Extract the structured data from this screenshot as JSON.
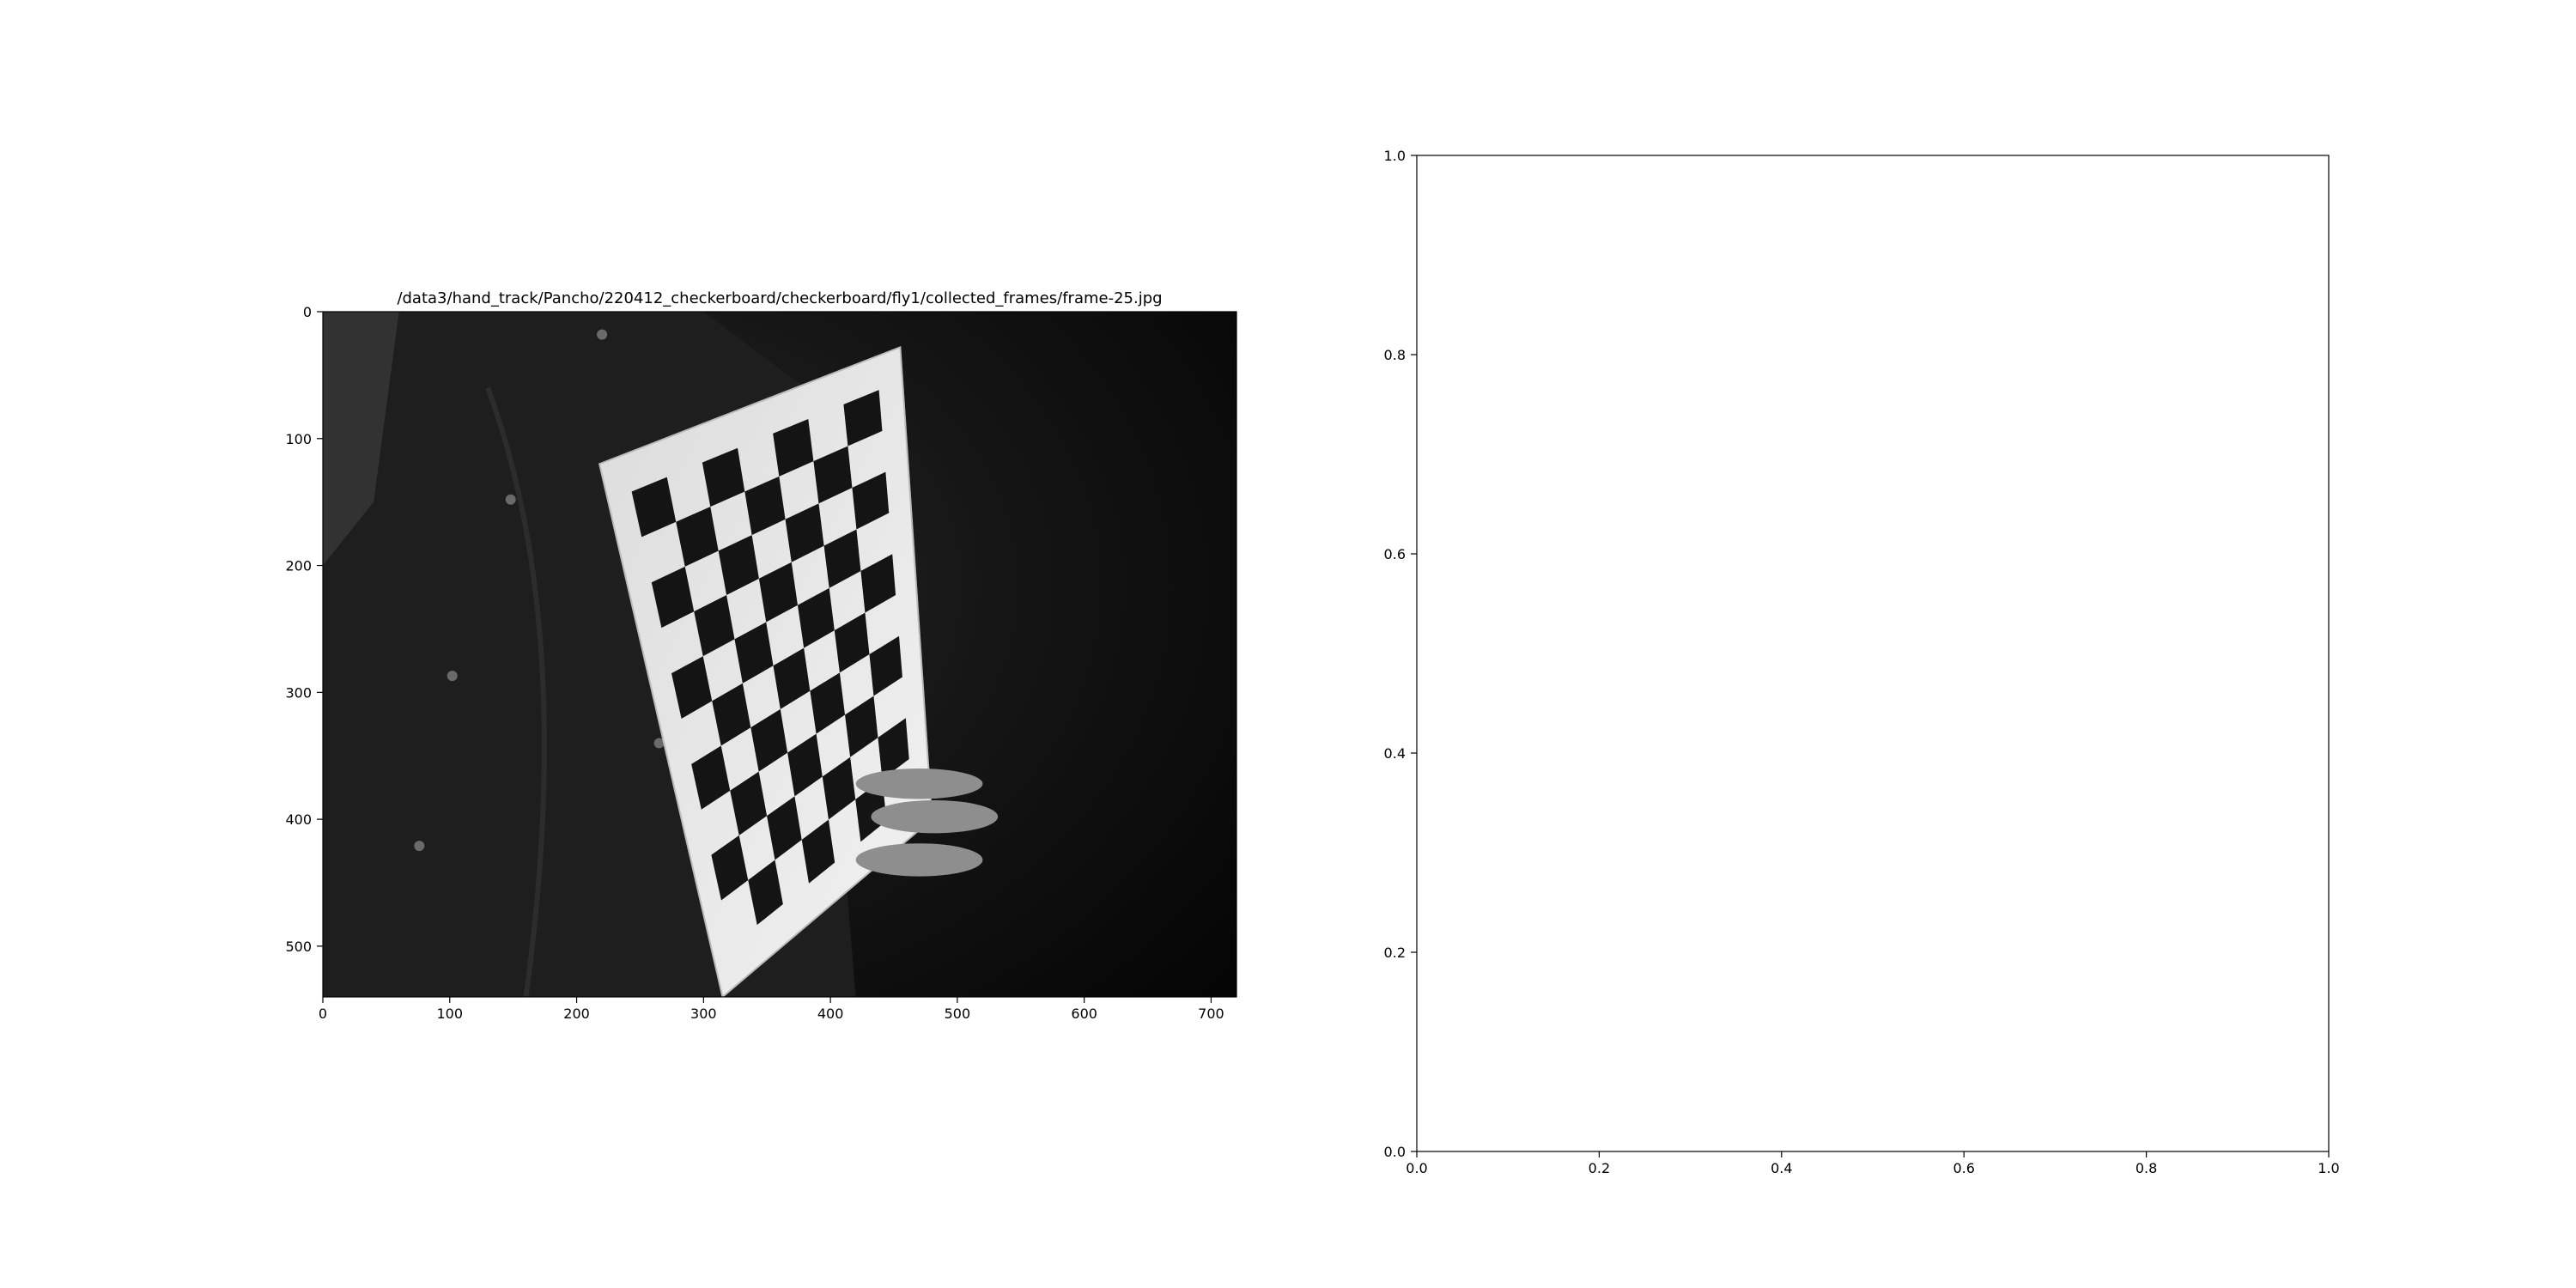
{
  "chart_data": [
    {
      "type": "image",
      "title": "/data3/hand_track/Pancho/220412_checkerboard/checkerboard/fly1/collected_frames/frame-25.jpg",
      "xlabel": "",
      "ylabel": "",
      "xlim": [
        0,
        720
      ],
      "ylim": [
        540,
        0
      ],
      "x_ticks": [
        0,
        100,
        200,
        300,
        400,
        500,
        600,
        700
      ],
      "y_ticks": [
        0,
        100,
        200,
        300,
        400,
        500
      ],
      "image_content": "grayscale-photo-person-holding-checkerboard",
      "checkerboard": {
        "rows": 10,
        "cols": 7
      },
      "colormap": "gray"
    },
    {
      "type": "scatter",
      "title": "",
      "xlabel": "",
      "ylabel": "",
      "xlim": [
        0.0,
        1.0
      ],
      "ylim": [
        0.0,
        1.0
      ],
      "x_ticks": [
        "0.0",
        "0.2",
        "0.4",
        "0.6",
        "0.8",
        "1.0"
      ],
      "y_ticks": [
        "0.0",
        "0.2",
        "0.4",
        "0.6",
        "0.8",
        "1.0"
      ],
      "series": []
    }
  ]
}
